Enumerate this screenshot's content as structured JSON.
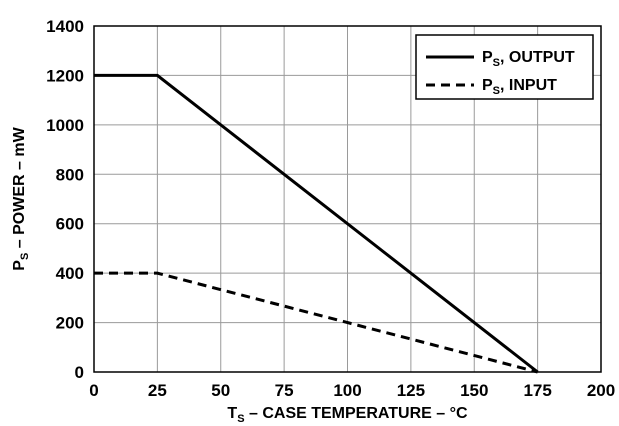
{
  "chart_data": {
    "type": "line",
    "xlabel": {
      "main": "T",
      "sub": "S",
      "rest": " – CASE TEMPERATURE – °C"
    },
    "ylabel": {
      "main": "P",
      "sub": "S",
      "rest": " – POWER – mW"
    },
    "xlim": [
      0,
      200
    ],
    "ylim": [
      0,
      1400
    ],
    "x_ticks": [
      "0",
      "25",
      "50",
      "75",
      "100",
      "125",
      "150",
      "175",
      "200"
    ],
    "y_ticks": [
      "0",
      "200",
      "400",
      "600",
      "800",
      "1000",
      "1200",
      "1400"
    ],
    "grid": true,
    "legend_position": "top-right",
    "series": [
      {
        "name": {
          "main": "P",
          "sub": "S",
          "rest": ", OUTPUT"
        },
        "style": "solid",
        "color": "#000000",
        "x": [
          0,
          25,
          175
        ],
        "y": [
          1200,
          1200,
          0
        ]
      },
      {
        "name": {
          "main": "P",
          "sub": "S",
          "rest": ", INPUT"
        },
        "style": "dashed",
        "color": "#000000",
        "x": [
          0,
          25,
          175
        ],
        "y": [
          400,
          400,
          0
        ]
      }
    ]
  }
}
